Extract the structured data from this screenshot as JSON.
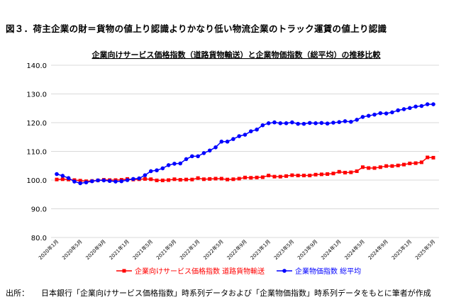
{
  "figure": {
    "title": "図３．荷主企業の財＝貨物の値上り認識よりかなり低い物流企業のトラック運賃の値上り認識",
    "source_label": "出所：",
    "source_text": "日本銀行「企業向けサービス価格指数」時系列データおよび「企業物価指数」時系列データをもとに筆者が作成"
  },
  "chart_data": {
    "type": "line",
    "title": "企業向けサービス価格指数（道路貨物輸送）と企業物価指数（総平均）の推移比較",
    "xlabel": "",
    "ylabel": "",
    "ylim": [
      80,
      140
    ],
    "yticks": [
      "80.0",
      "90.0",
      "100.0",
      "110.0",
      "120.0",
      "130.0",
      "140.0"
    ],
    "grid": true,
    "legend_position": "bottom",
    "x_tick_labels": [
      "2020年1月",
      "2020年5月",
      "2020年9月",
      "2021年1月",
      "2021年5月",
      "2021年9月",
      "2022年1月",
      "2022年5月",
      "2022年9月",
      "2023年1月",
      "2023年5月",
      "2023年9月",
      "2024年1月",
      "2024年5月",
      "2024年9月",
      "2025年1月",
      "2025年5月"
    ],
    "x_tick_every": 4,
    "n_points": 65,
    "series": [
      {
        "name": "企業向けサービス価格指数 道路貨物輸送",
        "color": "#ff0000",
        "marker": "square",
        "values": [
          100.2,
          100.3,
          100.2,
          100.0,
          99.8,
          99.6,
          99.7,
          99.9,
          100.1,
          100.0,
          100.0,
          100.1,
          100.4,
          100.2,
          100.3,
          100.4,
          100.3,
          99.9,
          99.9,
          100.0,
          100.3,
          100.1,
          100.2,
          100.2,
          100.7,
          100.3,
          100.4,
          100.5,
          100.5,
          100.2,
          100.3,
          100.5,
          100.9,
          100.8,
          100.9,
          101.0,
          101.6,
          101.2,
          101.2,
          101.4,
          101.7,
          101.6,
          101.6,
          101.6,
          101.9,
          102.0,
          102.1,
          102.3,
          102.9,
          102.6,
          102.7,
          103.1,
          104.5,
          104.2,
          104.2,
          104.5,
          104.9,
          104.9,
          105.1,
          105.4,
          105.8,
          105.9,
          106.2,
          107.9,
          107.8
        ]
      },
      {
        "name": "企業物価指数 総平均",
        "color": "#0000ff",
        "marker": "circle",
        "values": [
          102.1,
          101.5,
          100.7,
          99.5,
          98.9,
          99.2,
          99.6,
          99.9,
          99.9,
          99.7,
          99.5,
          99.6,
          100.0,
          100.4,
          100.6,
          101.7,
          103.1,
          103.4,
          104.1,
          105.2,
          105.7,
          105.8,
          107.3,
          108.3,
          108.3,
          109.4,
          110.3,
          111.4,
          113.4,
          113.4,
          114.3,
          115.3,
          115.8,
          117.0,
          117.6,
          119.1,
          119.8,
          120.1,
          119.8,
          119.8,
          120.1,
          119.6,
          119.6,
          119.9,
          119.8,
          119.9,
          119.7,
          120.0,
          120.2,
          120.5,
          120.3,
          121.0,
          122.0,
          122.4,
          122.8,
          123.3,
          123.2,
          123.6,
          124.3,
          124.7,
          125.1,
          125.6,
          125.8,
          126.4,
          126.4
        ]
      }
    ]
  }
}
